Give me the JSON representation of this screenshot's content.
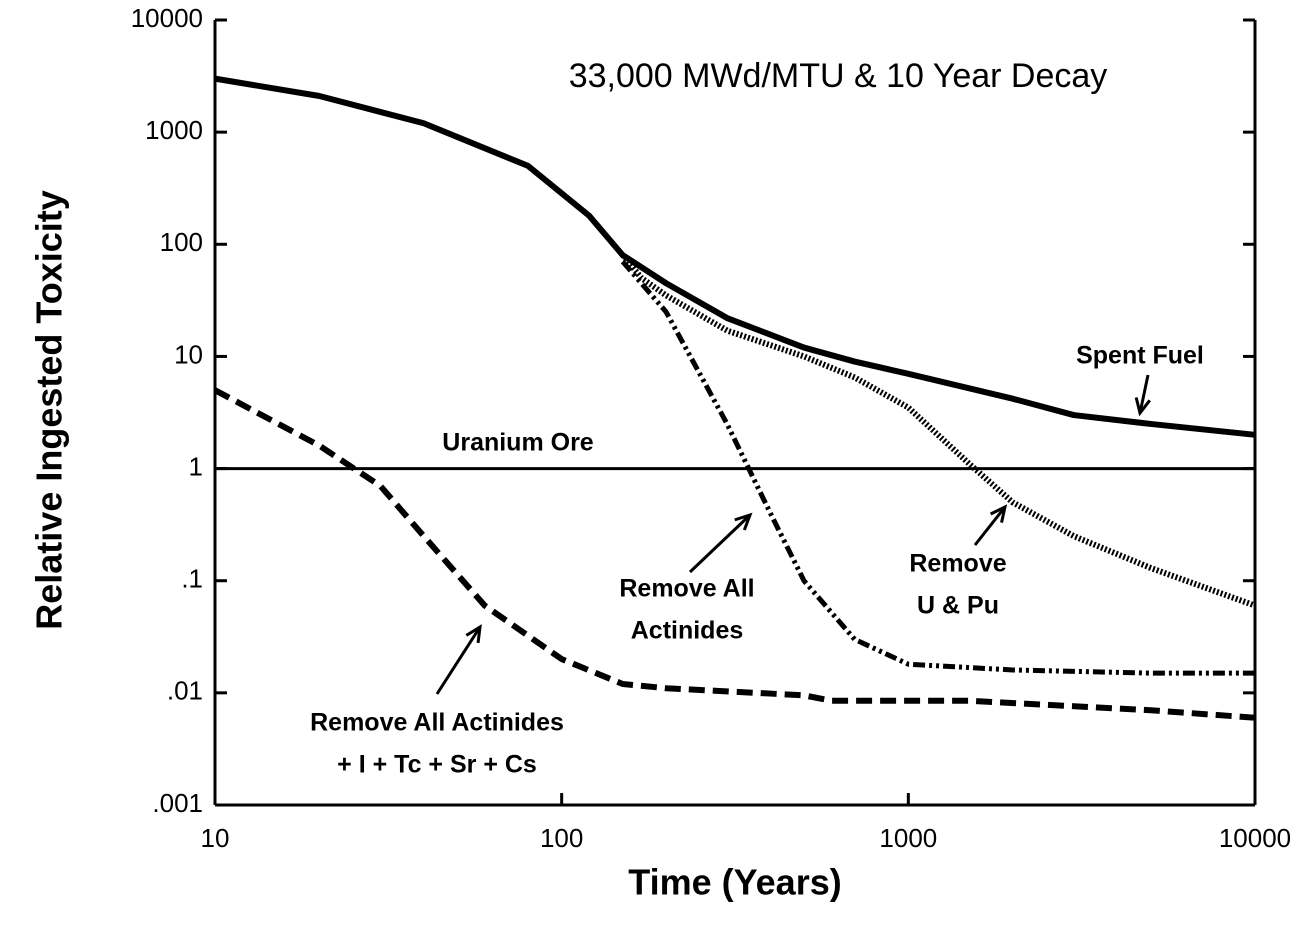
{
  "chart_data": {
    "type": "line",
    "xlabel": "Time  (Years)",
    "ylabel": "Relative Ingested Toxicity",
    "log_x": true,
    "log_y": true,
    "xlim": [
      10,
      10000
    ],
    "ylim": [
      0.001,
      10000
    ],
    "xticks": [
      10,
      100,
      1000,
      10000
    ],
    "yticks": [
      {
        "value": 0.001,
        "label": ".001"
      },
      {
        "value": 0.01,
        "label": ".01"
      },
      {
        "value": 0.1,
        "label": ".1"
      },
      1,
      10,
      100,
      1000,
      10000
    ],
    "series": [
      {
        "color": "#000000",
        "style": "solid",
        "x": [
          10,
          20,
          40,
          80,
          120,
          150,
          200,
          300,
          500,
          700,
          1000,
          2000,
          3000,
          5000,
          10000
        ],
        "values": [
          3000,
          2100,
          1200,
          500,
          180,
          80,
          45,
          22,
          12,
          9,
          7,
          4.2,
          3,
          2.5,
          2
        ]
      },
      {
        "color": "#000000",
        "style": "dotted",
        "x": [
          150,
          170,
          200,
          300,
          500,
          700,
          1000,
          1500,
          2000,
          3000,
          5000,
          10000
        ],
        "values": [
          80,
          50,
          35,
          17,
          10,
          6.5,
          3.5,
          1.1,
          0.5,
          0.25,
          0.13,
          0.06
        ]
      },
      {
        "color": "#000000",
        "style": "dashdot",
        "x": [
          150,
          200,
          300,
          400,
          500,
          700,
          1000,
          2000,
          5000,
          10000
        ],
        "values": [
          70,
          25,
          2.5,
          0.4,
          0.1,
          0.03,
          0.018,
          0.016,
          0.015,
          0.015
        ]
      },
      {
        "color": "#000000",
        "style": "dashed",
        "x": [
          10,
          20,
          30,
          40,
          60,
          100,
          150,
          200,
          500,
          600,
          1500,
          5000,
          10000
        ],
        "values": [
          5,
          1.6,
          0.7,
          0.25,
          0.06,
          0.02,
          0.012,
          0.011,
          0.0095,
          0.0085,
          0.0085,
          0.007,
          0.006
        ]
      },
      {
        "color": "#000000",
        "style": "thin",
        "x": [
          10,
          10000
        ],
        "values": [
          1,
          1
        ]
      }
    ],
    "annotations": [
      {
        "text": [
          "33,000 MWd/MTU  &  10 Year Decay"
        ]
      },
      {
        "text": [
          "Spent Fuel"
        ]
      },
      {
        "text": [
          "Uranium Ore"
        ]
      },
      {
        "text": [
          "Remove All",
          "Actinides"
        ]
      },
      {
        "text": [
          "Remove",
          "U & Pu"
        ]
      },
      {
        "text": [
          "Remove All Actinides",
          "+ I + Tc + Sr + Cs"
        ]
      }
    ]
  }
}
